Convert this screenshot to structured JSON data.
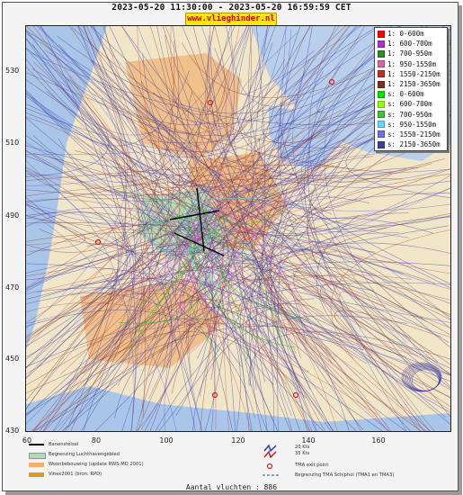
{
  "header": {
    "title": "2023-05-20 11:30:00 - 2023-05-20 16:59:59 CET",
    "site_label": "www.vlieghinder.nl"
  },
  "map": {
    "y_ticks": [
      "530",
      "510",
      "490",
      "470",
      "450",
      "430"
    ],
    "x_ticks": [
      "60",
      "80",
      "100",
      "120",
      "140",
      "160"
    ],
    "colors": {
      "land": "#f2e6c8",
      "water": "#a9c6e8",
      "urban": "#f0b070",
      "airport": "#b9d8b4"
    }
  },
  "legend": {
    "items": [
      {
        "label": "1: 0-600m",
        "color": "#ff0000"
      },
      {
        "label": "1: 600-700m",
        "color": "#b030d0"
      },
      {
        "label": "1: 700-950m",
        "color": "#2e8b2e"
      },
      {
        "label": "1: 950-1550m",
        "color": "#e060a0"
      },
      {
        "label": "1: 1550-2150m",
        "color": "#c03020"
      },
      {
        "label": "1: 2150-3650m",
        "color": "#7a3020"
      },
      {
        "label": "s: 0-600m",
        "color": "#00e000"
      },
      {
        "label": "s: 600-700m",
        "color": "#90ff00"
      },
      {
        "label": "s: 700-950m",
        "color": "#40c040"
      },
      {
        "label": "s: 950-1550m",
        "color": "#60d8ff"
      },
      {
        "label": "s: 1550-2150m",
        "color": "#7070e0"
      },
      {
        "label": "s: 2150-3650m",
        "color": "#404090"
      }
    ]
  },
  "bottom_legend": {
    "runway": "Banenstelsel",
    "airport_boundary": "Begrenzing Luchthavengebied",
    "housing": "Woonbebouwing (update RWS-MD 2001)",
    "vinex": "Vinex2001 (bron: RPD)",
    "wind_20": "20 Kts",
    "wind_35": "35 Kts",
    "tma_exit": "TMA exit point",
    "tma_boundary": "Begrenzing TMA Schiphol  (TMA1 en TMA3)"
  },
  "footer": {
    "flights": "Aantal vluchten : 886"
  }
}
